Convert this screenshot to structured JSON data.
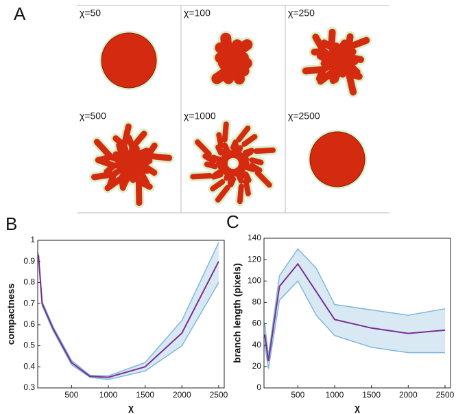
{
  "panel_a": {
    "letter": "A",
    "cells": [
      "χ=50",
      "χ=100",
      "χ=250",
      "χ=500",
      "χ=1000",
      "χ=2500"
    ]
  },
  "chart_data": [
    {
      "type": "line",
      "letter": "B",
      "xlabel": "χ",
      "ylabel": "compactness",
      "x": [
        50,
        100,
        250,
        500,
        750,
        1000,
        1500,
        2000,
        2500
      ],
      "values": [
        0.93,
        0.7,
        0.58,
        0.42,
        0.355,
        0.35,
        0.4,
        0.56,
        0.9
      ],
      "upper": [
        0.94,
        0.71,
        0.59,
        0.43,
        0.36,
        0.357,
        0.42,
        0.62,
        0.99
      ],
      "lower": [
        0.92,
        0.69,
        0.57,
        0.41,
        0.35,
        0.34,
        0.38,
        0.5,
        0.8
      ],
      "color": "#7b2d8e",
      "band_color": "#7fb6dc",
      "xlim": [
        40,
        2575
      ],
      "ylim": [
        0.3,
        1
      ],
      "xticks": [
        500,
        1000,
        1500,
        2000,
        2500
      ],
      "yticks": [
        0.3,
        0.4,
        0.5,
        0.6,
        0.7,
        0.8,
        0.9,
        1
      ]
    },
    {
      "type": "line",
      "letter": "C",
      "xlabel": "χ",
      "ylabel": "branch length (pixels)",
      "x": [
        50,
        100,
        250,
        500,
        750,
        1000,
        1500,
        2000,
        2500
      ],
      "values": [
        50,
        25,
        95,
        116,
        90,
        64,
        56,
        51,
        54
      ],
      "upper": [
        60,
        30,
        105,
        130,
        112,
        78,
        73,
        68,
        74
      ],
      "lower": [
        40,
        18,
        82,
        100,
        68,
        49,
        38,
        33,
        33
      ],
      "color": "#7b2d8e",
      "band_color": "#7fb6dc",
      "xlim": [
        40,
        2575
      ],
      "ylim": [
        0,
        140
      ],
      "xticks": [
        500,
        1000,
        1500,
        2000,
        2500
      ],
      "yticks": [
        0,
        20,
        40,
        60,
        80,
        100,
        120,
        140
      ]
    }
  ]
}
